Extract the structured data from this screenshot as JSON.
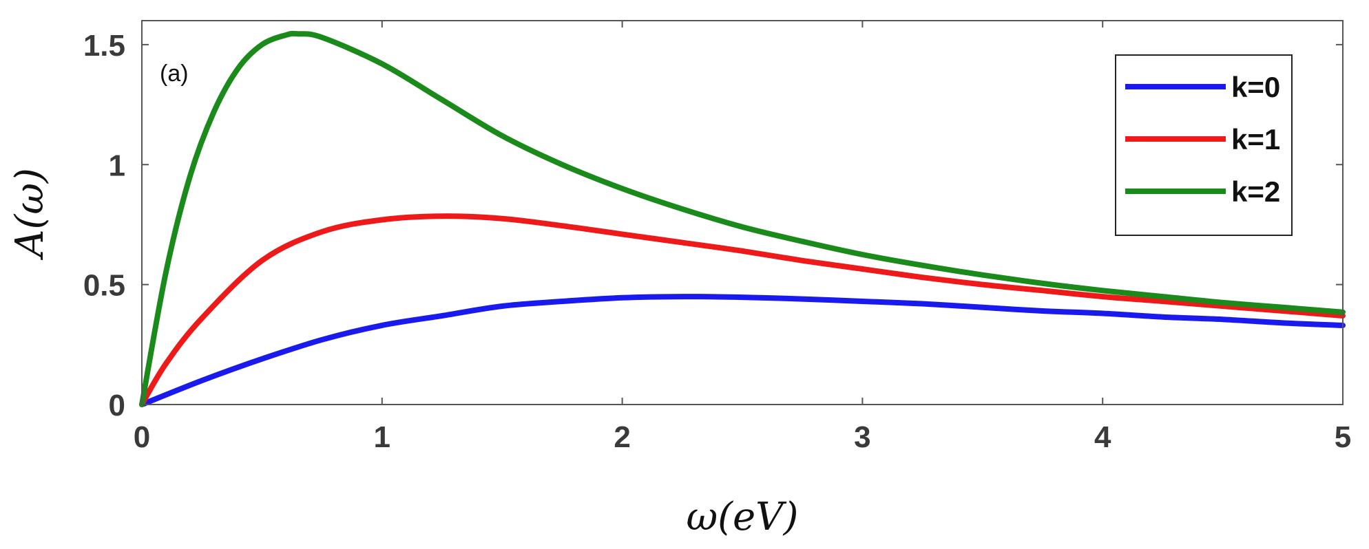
{
  "chart_data": {
    "type": "line",
    "panel_label": "(a)",
    "xlabel": "ω(eV)",
    "ylabel": "A(ω)",
    "xlim": [
      0,
      5
    ],
    "ylim": [
      0,
      1.6
    ],
    "xticks": [
      0,
      1,
      2,
      3,
      4,
      5
    ],
    "xtick_labels": [
      "0",
      "1",
      "2",
      "3",
      "4",
      "5"
    ],
    "yticks": [
      0,
      0.5,
      1,
      1.5
    ],
    "ytick_labels": [
      "0",
      "0.5",
      "1",
      "1.5"
    ],
    "grid": false,
    "legend_position": "top-right",
    "series": [
      {
        "name": "k=0",
        "color": "#1a1aee",
        "x": [
          0,
          0.25,
          0.5,
          0.75,
          1,
          1.25,
          1.5,
          1.75,
          2,
          2.25,
          2.5,
          2.75,
          3,
          3.25,
          3.5,
          3.75,
          4,
          4.25,
          4.5,
          4.75,
          5
        ],
        "y": [
          0,
          0.1,
          0.19,
          0.27,
          0.33,
          0.37,
          0.41,
          0.43,
          0.445,
          0.45,
          0.447,
          0.44,
          0.43,
          0.42,
          0.405,
          0.39,
          0.38,
          0.365,
          0.355,
          0.34,
          0.33
        ]
      },
      {
        "name": "k=1",
        "color": "#ee1a1a",
        "x": [
          0,
          0.1,
          0.25,
          0.5,
          0.75,
          1,
          1.25,
          1.5,
          1.75,
          2,
          2.25,
          2.5,
          2.75,
          3,
          3.25,
          3.5,
          3.75,
          4,
          4.25,
          4.5,
          4.75,
          5
        ],
        "y": [
          0,
          0.17,
          0.36,
          0.6,
          0.72,
          0.77,
          0.785,
          0.775,
          0.745,
          0.71,
          0.675,
          0.64,
          0.6,
          0.565,
          0.53,
          0.5,
          0.475,
          0.45,
          0.43,
          0.41,
          0.39,
          0.37
        ]
      },
      {
        "name": "k=2",
        "color": "#1a8a1a",
        "x": [
          0,
          0.1,
          0.2,
          0.3,
          0.4,
          0.5,
          0.6,
          0.65,
          0.75,
          1,
          1.25,
          1.5,
          1.75,
          2,
          2.25,
          2.5,
          2.75,
          3,
          3.25,
          3.5,
          3.75,
          4,
          4.25,
          4.5,
          4.75,
          5
        ],
        "y": [
          0,
          0.55,
          0.95,
          1.22,
          1.4,
          1.5,
          1.54,
          1.545,
          1.53,
          1.42,
          1.27,
          1.12,
          1.0,
          0.9,
          0.815,
          0.74,
          0.68,
          0.625,
          0.58,
          0.54,
          0.505,
          0.475,
          0.45,
          0.425,
          0.405,
          0.385
        ]
      }
    ]
  }
}
